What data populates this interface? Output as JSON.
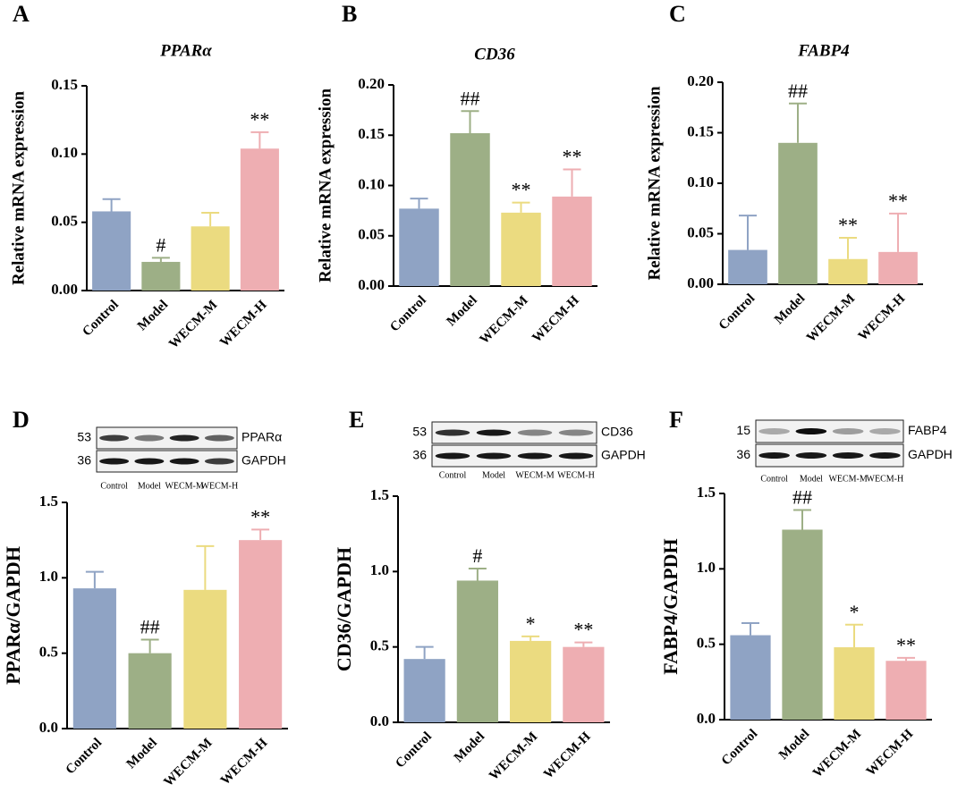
{
  "chart_data": [
    {
      "type": "bar",
      "panel": "A",
      "title": "PPARα",
      "y_label": "Relative mRNA expression",
      "categories": [
        "Control",
        "Model",
        "WECM-M",
        "WECM-H"
      ],
      "values": [
        0.058,
        0.021,
        0.047,
        0.104
      ],
      "errors": [
        0.009,
        0.003,
        0.01,
        0.012
      ],
      "annotations": [
        null,
        "#",
        null,
        "**"
      ],
      "colors": [
        "#8fa3c4",
        "#9daf86",
        "#ebdb80",
        "#eeaeb2"
      ],
      "ylim": [
        0,
        0.15
      ],
      "yticks": [
        {
          "value": 0,
          "label": "0.00"
        },
        {
          "value": 0.05,
          "label": "0.05"
        },
        {
          "value": 0.1,
          "label": "0.10"
        },
        {
          "value": 0.15,
          "label": "0.15"
        }
      ]
    },
    {
      "type": "bar",
      "panel": "B",
      "title": "CD36",
      "y_label": "Relative mRNA expression",
      "categories": [
        "Control",
        "Model",
        "WECM-M",
        "WECM-H"
      ],
      "values": [
        0.077,
        0.152,
        0.073,
        0.089
      ],
      "errors": [
        0.01,
        0.022,
        0.01,
        0.027
      ],
      "annotations": [
        null,
        "##",
        "**",
        "**"
      ],
      "colors": [
        "#8fa3c4",
        "#9daf86",
        "#ebdb80",
        "#eeaeb2"
      ],
      "ylim": [
        0,
        0.2
      ],
      "yticks": [
        {
          "value": 0,
          "label": "0.00"
        },
        {
          "value": 0.05,
          "label": "0.05"
        },
        {
          "value": 0.1,
          "label": "0.10"
        },
        {
          "value": 0.15,
          "label": "0.15"
        },
        {
          "value": 0.2,
          "label": "0.20"
        }
      ]
    },
    {
      "type": "bar",
      "panel": "C",
      "title": "FABP4",
      "y_label": "Relative mRNA expression",
      "categories": [
        "Control",
        "Model",
        "WECM-M",
        "WECM-H"
      ],
      "values": [
        0.034,
        0.14,
        0.025,
        0.032
      ],
      "errors": [
        0.034,
        0.039,
        0.021,
        0.038
      ],
      "annotations": [
        null,
        "##",
        "**",
        "**"
      ],
      "colors": [
        "#8fa3c4",
        "#9daf86",
        "#ebdb80",
        "#eeaeb2"
      ],
      "ylim": [
        0,
        0.2
      ],
      "yticks": [
        {
          "value": 0,
          "label": "0.00"
        },
        {
          "value": 0.05,
          "label": "0.05"
        },
        {
          "value": 0.1,
          "label": "0.10"
        },
        {
          "value": 0.15,
          "label": "0.15"
        },
        {
          "value": 0.2,
          "label": "0.20"
        }
      ]
    },
    {
      "type": "bar",
      "panel": "D",
      "y_label": "PPARα/GAPDH",
      "blot": {
        "markers": [
          "53",
          "36"
        ],
        "bands": [
          "PPARα",
          "GAPDH"
        ],
        "lanes": [
          "Control",
          "Model",
          "WECM-M",
          "WECM-H"
        ]
      },
      "categories": [
        "Control",
        "Model",
        "WECM-M",
        "WECM-H"
      ],
      "values": [
        0.93,
        0.5,
        0.92,
        1.25
      ],
      "errors": [
        0.11,
        0.09,
        0.29,
        0.07
      ],
      "annotations": [
        null,
        "##",
        null,
        "**"
      ],
      "colors": [
        "#8fa3c4",
        "#9daf86",
        "#ebdb80",
        "#eeaeb2"
      ],
      "ylim": [
        0,
        1.5
      ],
      "yticks": [
        {
          "value": 0,
          "label": "0.0"
        },
        0.5,
        {
          "value": 1,
          "label": "1.0"
        },
        1.5
      ]
    },
    {
      "type": "bar",
      "panel": "E",
      "y_label": "CD36/GAPDH",
      "blot": {
        "markers": [
          "53",
          "36"
        ],
        "bands": [
          "CD36",
          "GAPDH"
        ],
        "lanes": [
          "Control",
          "Model",
          "WECM-M",
          "WECM-H"
        ]
      },
      "categories": [
        "Control",
        "Model",
        "WECM-M",
        "WECM-H"
      ],
      "values": [
        0.42,
        0.94,
        0.54,
        0.5
      ],
      "errors": [
        0.08,
        0.08,
        0.03,
        0.03
      ],
      "annotations": [
        null,
        "#",
        "*",
        "**"
      ],
      "colors": [
        "#8fa3c4",
        "#9daf86",
        "#ebdb80",
        "#eeaeb2"
      ],
      "ylim": [
        0,
        1.5
      ],
      "yticks": [
        {
          "value": 0,
          "label": "0.0"
        },
        0.5,
        {
          "value": 1,
          "label": "1.0"
        },
        1.5
      ]
    },
    {
      "type": "bar",
      "panel": "F",
      "y_label": "FABP4/GAPDH",
      "blot": {
        "markers": [
          "15",
          "36"
        ],
        "bands": [
          "FABP4",
          "GAPDH"
        ],
        "lanes": [
          "Control",
          "Model",
          "WECM-M",
          "WECM-H"
        ]
      },
      "categories": [
        "Control",
        "Model",
        "WECM-M",
        "WECM-H"
      ],
      "values": [
        0.56,
        1.26,
        0.48,
        0.39
      ],
      "errors": [
        0.08,
        0.13,
        0.15,
        0.02
      ],
      "annotations": [
        null,
        "##",
        "*",
        "**"
      ],
      "colors": [
        "#8fa3c4",
        "#9daf86",
        "#ebdb80",
        "#eeaeb2"
      ],
      "ylim": [
        0,
        1.5
      ],
      "yticks": [
        {
          "value": 0,
          "label": "0.0"
        },
        0.5,
        {
          "value": 1,
          "label": "1.0"
        },
        1.5
      ]
    }
  ]
}
